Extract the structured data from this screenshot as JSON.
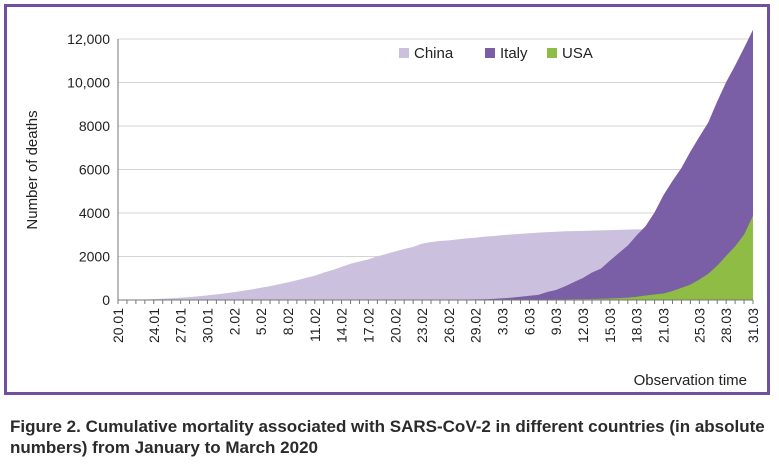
{
  "chart_data": {
    "type": "area",
    "ylabel": "Number of deaths",
    "xlabel": "Observation time",
    "ylim": [
      0,
      12000
    ],
    "y_ticks": [
      {
        "value": 0,
        "label": "0"
      },
      {
        "value": 2000,
        "label": "2000"
      },
      {
        "value": 4000,
        "label": "4000"
      },
      {
        "value": 6000,
        "label": "6000"
      },
      {
        "value": 8000,
        "label": "8000"
      },
      {
        "value": 10000,
        "label": "10,000"
      },
      {
        "value": 12000,
        "label": "12,000"
      }
    ],
    "x_tick_labels": [
      "20.01",
      "24.01",
      "27.01",
      "30.01",
      "2.02",
      "5.02",
      "8.02",
      "11.02",
      "14.02",
      "17.02",
      "20.02",
      "23.02",
      "26.02",
      "29.02",
      "3.03",
      "6.03",
      "9.03",
      "12.03",
      "15.03",
      "18.03",
      "21.03",
      "25.03",
      "28.03",
      "31.03"
    ],
    "x_tick_days": [
      0,
      4,
      7,
      10,
      13,
      16,
      19,
      22,
      25,
      28,
      31,
      34,
      37,
      40,
      43,
      46,
      49,
      52,
      55,
      58,
      61,
      65,
      68,
      71
    ],
    "x_dates": [
      "20.01",
      "21.01",
      "22.01",
      "23.01",
      "24.01",
      "25.01",
      "26.01",
      "27.01",
      "28.01",
      "29.01",
      "30.01",
      "31.01",
      "1.02",
      "2.02",
      "3.02",
      "4.02",
      "5.02",
      "6.02",
      "7.02",
      "8.02",
      "9.02",
      "10.02",
      "11.02",
      "12.02",
      "13.02",
      "14.02",
      "15.02",
      "16.02",
      "17.02",
      "18.02",
      "19.02",
      "20.02",
      "21.02",
      "22.02",
      "23.02",
      "24.02",
      "25.02",
      "26.02",
      "27.02",
      "28.02",
      "29.02",
      "1.03",
      "2.03",
      "3.03",
      "4.03",
      "5.03",
      "6.03",
      "7.03",
      "8.03",
      "9.03",
      "10.03",
      "11.03",
      "12.03",
      "13.03",
      "14.03",
      "15.03",
      "16.03",
      "17.03",
      "18.03",
      "19.03",
      "20.03",
      "21.03",
      "22.03",
      "23.03",
      "24.03",
      "25.03",
      "26.03",
      "27.03",
      "28.03",
      "29.03",
      "30.03",
      "31.03"
    ],
    "legend_position": "top-right",
    "grid": true,
    "series": [
      {
        "name": "China",
        "color": "#cbc0dd",
        "values": [
          6,
          9,
          17,
          25,
          41,
          56,
          80,
          106,
          132,
          170,
          213,
          259,
          304,
          361,
          425,
          490,
          563,
          636,
          722,
          811,
          908,
          1016,
          1113,
          1259,
          1380,
          1523,
          1665,
          1770,
          1868,
          2004,
          2118,
          2236,
          2345,
          2442,
          2592,
          2663,
          2715,
          2744,
          2788,
          2835,
          2870,
          2912,
          2943,
          2981,
          3012,
          3042,
          3070,
          3097,
          3119,
          3136,
          3158,
          3169,
          3176,
          3189,
          3199,
          3213,
          3226,
          3237,
          3245,
          3249,
          3253,
          3261,
          3270,
          3277,
          3281,
          3285,
          3291,
          3296,
          3299,
          3304,
          3308,
          3312
        ]
      },
      {
        "name": "Italy",
        "color": "#7b5fa6",
        "values": [
          0,
          0,
          0,
          0,
          0,
          0,
          0,
          0,
          0,
          0,
          0,
          0,
          0,
          0,
          0,
          0,
          0,
          0,
          0,
          0,
          0,
          0,
          0,
          0,
          0,
          0,
          0,
          0,
          0,
          0,
          0,
          0,
          1,
          2,
          3,
          7,
          10,
          12,
          17,
          21,
          29,
          34,
          52,
          79,
          107,
          148,
          197,
          233,
          366,
          463,
          631,
          827,
          1016,
          1266,
          1441,
          1809,
          2158,
          2503,
          2978,
          3405,
          4032,
          4825,
          5476,
          6077,
          6820,
          7503,
          8165,
          9134,
          10023,
          10779,
          11591,
          12428
        ]
      },
      {
        "name": "USA",
        "color": "#8fbc45",
        "values": [
          0,
          0,
          0,
          0,
          0,
          0,
          0,
          0,
          0,
          0,
          0,
          0,
          0,
          0,
          0,
          0,
          0,
          0,
          0,
          0,
          0,
          0,
          0,
          0,
          0,
          0,
          0,
          0,
          0,
          0,
          0,
          0,
          0,
          0,
          0,
          0,
          0,
          0,
          0,
          0,
          1,
          2,
          6,
          9,
          11,
          12,
          15,
          19,
          22,
          26,
          30,
          38,
          41,
          48,
          57,
          68,
          86,
          109,
          150,
          206,
          255,
          301,
          413,
          558,
          706,
          942,
          1209,
          1581,
          2026,
          2467,
          3008,
          3873
        ]
      }
    ]
  },
  "caption": "Figure 2. Cumulative mortality associated with SARS-CoV-2 in different countries (in absolute numbers) from January to March 2020",
  "frame_color": "#6f4f9e"
}
